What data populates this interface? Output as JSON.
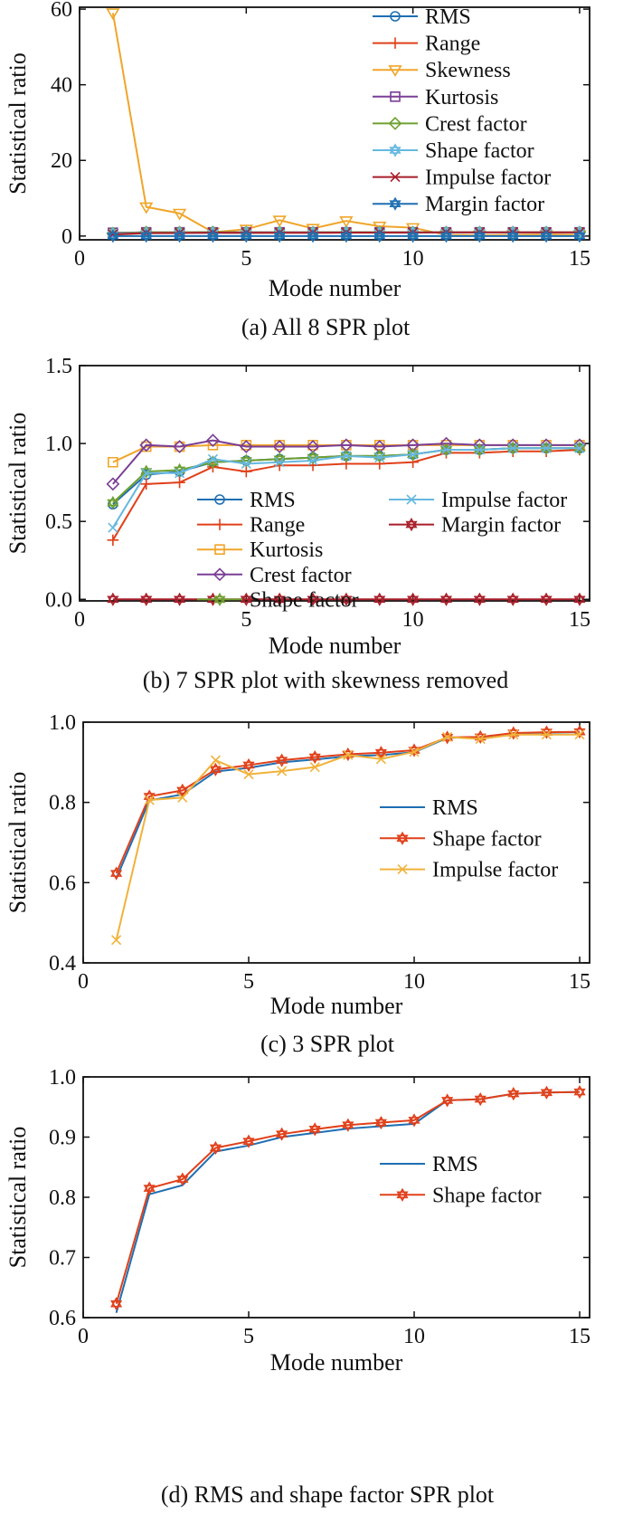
{
  "colors": {
    "RMS": "#1f6fb2",
    "Range": "#e0401a",
    "Skewness": "#f0a52a",
    "Kurtosis": "#f0a52a",
    "Crest factor": "#7a3e96",
    "Shape factor": "#6fa030",
    "Impulse factor": "#66b8e0",
    "Margin factor": "#a81f2a",
    "Shape factor c": "#e0401a",
    "Impulse factor c": "#f0b23a"
  },
  "chart_data": [
    {
      "id": "a",
      "type": "line",
      "caption": "(a) All 8 SPR plot",
      "xlabel": "Mode number",
      "ylabel": "Statistical ratio",
      "xlim": [
        0,
        15.3
      ],
      "ylim": [
        -1,
        60.5
      ],
      "xticks": [
        0,
        5,
        10,
        15
      ],
      "yticks": [
        0,
        20,
        40,
        60
      ],
      "ytick_labels": [
        "0",
        "20",
        "40",
        "60"
      ],
      "legend_position": "top-right",
      "x": [
        1,
        2,
        3,
        4,
        5,
        6,
        7,
        8,
        9,
        10,
        11,
        12,
        13,
        14,
        15
      ],
      "series": [
        {
          "name": "RMS",
          "marker": "circle",
          "color_key": "RMS",
          "values": [
            0.61,
            0.8,
            0.82,
            0.88,
            0.89,
            0.9,
            0.91,
            0.92,
            0.92,
            0.93,
            0.96,
            0.96,
            0.97,
            0.97,
            0.97
          ]
        },
        {
          "name": "Range",
          "marker": "plus",
          "color_key": "Range",
          "values": [
            0.38,
            0.74,
            0.75,
            0.85,
            0.82,
            0.86,
            0.86,
            0.87,
            0.87,
            0.88,
            0.94,
            0.94,
            0.95,
            0.95,
            0.96
          ]
        },
        {
          "name": "Skewness",
          "marker": "triangle-down",
          "color_key": "Skewness",
          "values": [
            59,
            7.7,
            6,
            1,
            1.8,
            4.2,
            2,
            4,
            2.6,
            2.2,
            0.3,
            0.2,
            0.3,
            0.4,
            0.3
          ]
        },
        {
          "name": "Kurtosis",
          "marker": "square",
          "color_key": "Crest factor",
          "values": [
            0.88,
            0.98,
            0.98,
            0.99,
            0.99,
            0.99,
            0.99,
            0.99,
            0.99,
            0.99,
            0.99,
            0.99,
            0.99,
            0.99,
            0.99
          ]
        },
        {
          "name": "Crest factor",
          "marker": "diamond",
          "color_key": "Shape factor",
          "values": [
            0.74,
            0.99,
            0.98,
            1.02,
            0.98,
            0.98,
            0.98,
            0.99,
            0.98,
            0.99,
            1.0,
            0.99,
            0.99,
            0.99,
            0.99
          ]
        },
        {
          "name": "Shape factor",
          "marker": "star",
          "color_key": "Impulse factor",
          "values": [
            0.62,
            0.82,
            0.83,
            0.88,
            0.89,
            0.9,
            0.91,
            0.92,
            0.92,
            0.93,
            0.96,
            0.96,
            0.97,
            0.97,
            0.97
          ]
        },
        {
          "name": "Impulse factor",
          "marker": "x",
          "color_key": "Margin factor",
          "values": [
            0.46,
            0.81,
            0.81,
            0.9,
            0.87,
            0.88,
            0.89,
            0.92,
            0.91,
            0.93,
            0.96,
            0.96,
            0.97,
            0.97,
            0.97
          ]
        },
        {
          "name": "Margin factor",
          "marker": "hexstar",
          "color_key": "RMS",
          "values": [
            0,
            0,
            0,
            0,
            0,
            0,
            0,
            0,
            0,
            0,
            0,
            0,
            0,
            0,
            0
          ]
        }
      ]
    },
    {
      "id": "b",
      "type": "line",
      "caption": "(b) 7 SPR plot with skewness removed",
      "xlabel": "Mode number",
      "ylabel": "Statistical ratio",
      "xlim": [
        0,
        15.3
      ],
      "ylim": [
        -0.01,
        1.5
      ],
      "xticks": [
        0,
        5,
        10,
        15
      ],
      "yticks": [
        0,
        0.5,
        1.0,
        1.5
      ],
      "ytick_labels": [
        "0.0",
        "0.5",
        "1.0",
        "1.5"
      ],
      "legend_position": "middle-center",
      "x": [
        1,
        2,
        3,
        4,
        5,
        6,
        7,
        8,
        9,
        10,
        11,
        12,
        13,
        14,
        15
      ],
      "series": [
        {
          "name": "RMS",
          "marker": "circle",
          "color_key": "RMS",
          "values": [
            0.61,
            0.8,
            0.82,
            0.88,
            0.89,
            0.9,
            0.91,
            0.92,
            0.92,
            0.93,
            0.96,
            0.96,
            0.97,
            0.97,
            0.97
          ]
        },
        {
          "name": "Range",
          "marker": "plus",
          "color_key": "Range",
          "values": [
            0.38,
            0.74,
            0.75,
            0.85,
            0.82,
            0.86,
            0.86,
            0.87,
            0.87,
            0.88,
            0.94,
            0.94,
            0.95,
            0.95,
            0.96
          ]
        },
        {
          "name": "Kurtosis",
          "marker": "square",
          "color_key": "Kurtosis",
          "values": [
            0.88,
            0.98,
            0.98,
            0.99,
            0.99,
            0.99,
            0.99,
            0.99,
            0.99,
            0.99,
            0.99,
            0.99,
            0.99,
            0.99,
            0.99
          ]
        },
        {
          "name": "Crest factor",
          "marker": "diamond",
          "color_key": "Crest factor",
          "values": [
            0.74,
            0.99,
            0.98,
            1.02,
            0.98,
            0.98,
            0.98,
            0.99,
            0.98,
            0.99,
            1.0,
            0.99,
            0.99,
            0.99,
            0.99
          ]
        },
        {
          "name": "Shape factor",
          "marker": "star",
          "color_key": "Shape factor",
          "values": [
            0.62,
            0.82,
            0.83,
            0.88,
            0.89,
            0.9,
            0.91,
            0.92,
            0.92,
            0.93,
            0.96,
            0.96,
            0.97,
            0.97,
            0.97
          ]
        },
        {
          "name": "Impulse factor",
          "marker": "x",
          "color_key": "Impulse factor",
          "values": [
            0.46,
            0.81,
            0.81,
            0.9,
            0.87,
            0.88,
            0.89,
            0.92,
            0.91,
            0.93,
            0.96,
            0.96,
            0.97,
            0.97,
            0.97
          ]
        },
        {
          "name": "Margin factor",
          "marker": "hexstar",
          "color_key": "Margin factor",
          "values": [
            0,
            0,
            0,
            0,
            0,
            0,
            0,
            0,
            0,
            0,
            0,
            0,
            0,
            0,
            0
          ]
        }
      ]
    },
    {
      "id": "c",
      "type": "line",
      "caption": "(c) 3 SPR plot",
      "xlabel": "Mode number",
      "ylabel": "Statistical ratio",
      "xlim": [
        0,
        15.3
      ],
      "ylim": [
        0.4,
        1.0
      ],
      "xticks": [
        0,
        5,
        10,
        15
      ],
      "yticks": [
        0.4,
        0.6,
        0.8,
        1.0
      ],
      "ytick_labels": [
        "0.4",
        "0.6",
        "0.8",
        "1.0"
      ],
      "legend_position": "middle-right",
      "x": [
        1,
        2,
        3,
        4,
        5,
        6,
        7,
        8,
        9,
        10,
        11,
        12,
        13,
        14,
        15
      ],
      "series": [
        {
          "name": "RMS",
          "marker": "none",
          "color_key": "RMS",
          "values": [
            0.61,
            0.805,
            0.82,
            0.877,
            0.886,
            0.9,
            0.907,
            0.915,
            0.918,
            0.925,
            0.961,
            0.963,
            0.972,
            0.974,
            0.975
          ]
        },
        {
          "name": "Shape factor",
          "marker": "hexstar",
          "color_key": "Shape factor c",
          "values": [
            0.623,
            0.815,
            0.83,
            0.882,
            0.893,
            0.905,
            0.913,
            0.92,
            0.924,
            0.93,
            0.962,
            0.963,
            0.973,
            0.975,
            0.976
          ]
        },
        {
          "name": "Impulse factor",
          "marker": "x",
          "color_key": "Impulse factor c",
          "values": [
            0.457,
            0.806,
            0.812,
            0.905,
            0.87,
            0.878,
            0.888,
            0.918,
            0.908,
            0.926,
            0.963,
            0.958,
            0.969,
            0.969,
            0.969
          ]
        }
      ]
    },
    {
      "id": "d",
      "type": "line",
      "caption": "(d) RMS and shape factor SPR plot",
      "xlabel": "Mode number",
      "ylabel": "Statistical ratio",
      "xlim": [
        0,
        15.3
      ],
      "ylim": [
        0.6,
        1.0
      ],
      "xticks": [
        0,
        5,
        10,
        15
      ],
      "yticks": [
        0.6,
        0.7,
        0.8,
        0.9,
        1.0
      ],
      "ytick_labels": [
        "0.6",
        "0.7",
        "0.8",
        "0.9",
        "1.0"
      ],
      "legend_position": "middle-right",
      "x": [
        1,
        2,
        3,
        4,
        5,
        6,
        7,
        8,
        9,
        10,
        11,
        12,
        13,
        14,
        15
      ],
      "series": [
        {
          "name": "RMS",
          "marker": "none",
          "color_key": "RMS",
          "values": [
            0.608,
            0.805,
            0.82,
            0.876,
            0.886,
            0.9,
            0.907,
            0.914,
            0.918,
            0.922,
            0.961,
            0.963,
            0.972,
            0.974,
            0.975
          ]
        },
        {
          "name": "Shape factor",
          "marker": "hexstar",
          "color_key": "Shape factor c",
          "values": [
            0.623,
            0.815,
            0.83,
            0.882,
            0.893,
            0.905,
            0.913,
            0.92,
            0.924,
            0.928,
            0.961,
            0.963,
            0.972,
            0.974,
            0.975
          ]
        }
      ]
    }
  ]
}
